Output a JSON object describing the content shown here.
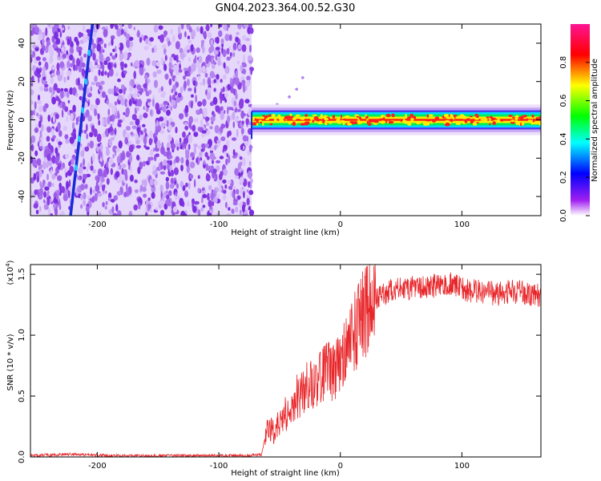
{
  "chart_data": [
    {
      "type": "heatmap",
      "title": "GN04.2023.364.00.52.G30",
      "xlabel": "Height of straight line (km)",
      "ylabel": "Frequency (Hz)",
      "xlim": [
        -255,
        165
      ],
      "ylim": [
        -50,
        50
      ],
      "xticks": [
        -200,
        -100,
        0,
        100
      ],
      "yticks": [
        -40,
        -20,
        0,
        20,
        40
      ],
      "colorbar": {
        "label": "Normalized spectral amplitude",
        "range": [
          0.0,
          1.0
        ],
        "ticks": [
          "0.0",
          "0.2",
          "0.4",
          "0.6",
          "0.8"
        ],
        "colors": [
          "#ffffff",
          "#a020f0",
          "#0000ff",
          "#00ffff",
          "#00ff00",
          "#ffff00",
          "#ff0000",
          "#ff1493"
        ]
      },
      "features": {
        "noise_region_x": [
          -255,
          -73
        ],
        "signal_band_x": [
          -73,
          165
        ],
        "signal_band_center_hz": 0,
        "signal_band_halfwidth_hz": 4,
        "diagonal_streak": {
          "x_start": -222,
          "y_start": -50,
          "x_end": -204,
          "y_end": 50
        },
        "sparse_dots": [
          {
            "x": -60,
            "y": 4
          },
          {
            "x": -52,
            "y": 8
          },
          {
            "x": -42,
            "y": 12
          },
          {
            "x": -36,
            "y": 16
          },
          {
            "x": -31,
            "y": 22
          }
        ]
      }
    },
    {
      "type": "line",
      "xlabel": "Height of straight line (km)",
      "ylabel": "SNR (10 * v/v)",
      "multiplier": "(x10",
      "multiplier_exp": "4",
      "multiplier_close": ")",
      "xlim": [
        -255,
        165
      ],
      "ylim": [
        0,
        1.58
      ],
      "xticks": [
        -200,
        -100,
        0,
        100
      ],
      "yticks": [
        "0.0",
        "0.5",
        "1.0",
        "1.5"
      ],
      "color": "#e8262a",
      "series": [
        {
          "x": [
            -255,
            -230,
            -210,
            -190,
            -160,
            -130,
            -100,
            -80,
            -65,
            -60,
            -55,
            -50,
            -45,
            -40,
            -35,
            -30,
            -25,
            -20,
            -15,
            -10,
            -5,
            0,
            5,
            10,
            15,
            20,
            30,
            40,
            50,
            60,
            70,
            80,
            90,
            100,
            110,
            120,
            130,
            140,
            150,
            160,
            165
          ],
          "y": [
            0.01,
            0.02,
            0.02,
            0.01,
            0.01,
            0.01,
            0.01,
            0.01,
            0.02,
            0.25,
            0.2,
            0.3,
            0.35,
            0.45,
            0.5,
            0.55,
            0.6,
            0.58,
            0.68,
            0.7,
            0.72,
            0.78,
            0.88,
            0.98,
            1.08,
            1.18,
            1.3,
            1.36,
            1.38,
            1.39,
            1.4,
            1.41,
            1.42,
            1.38,
            1.36,
            1.35,
            1.34,
            1.36,
            1.35,
            1.33,
            1.32
          ]
        }
      ]
    }
  ]
}
